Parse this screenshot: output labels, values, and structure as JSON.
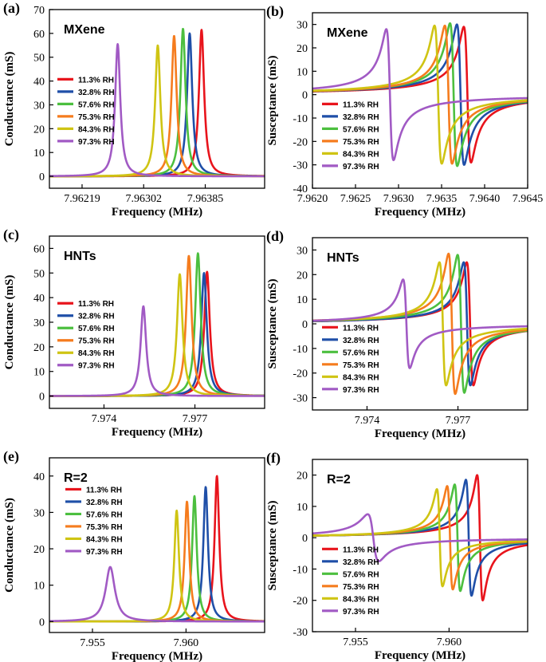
{
  "figure": {
    "legend_entries": [
      "11.3% RH",
      "32.8% RH",
      "57.6% RH",
      "75.3% RH",
      "84.3% RH",
      "97.3% RH"
    ],
    "legend_colors": [
      "#e8141c",
      "#1f4fa8",
      "#4cbf3f",
      "#f57c1e",
      "#cfc413",
      "#a15ac4"
    ]
  },
  "chart_data": [
    {
      "panel": "(a)",
      "label": "MXene",
      "type": "line",
      "kind": "conductance",
      "xlabel": "Frequency (MHz)",
      "ylabel": "Conductance (mS)",
      "xlim": [
        7.96175,
        7.96465
      ],
      "ylim": [
        -5,
        70
      ],
      "xticks": [
        7.96219,
        7.96302,
        7.96385
      ],
      "xtick_labels": [
        "7.96219",
        "7.96302",
        "7.96385"
      ],
      "yticks": [
        0,
        10,
        20,
        30,
        40,
        50,
        60,
        70
      ],
      "legend_pos": "left",
      "series": [
        {
          "name": "11.3% RH",
          "f0": 7.9638,
          "peak": 61.5,
          "width": 4.2e-05
        },
        {
          "name": "32.8% RH",
          "f0": 7.96364,
          "peak": 60.0,
          "width": 4.2e-05
        },
        {
          "name": "57.6% RH",
          "f0": 7.96355,
          "peak": 62.0,
          "width": 4.2e-05
        },
        {
          "name": "75.3% RH",
          "f0": 7.96343,
          "peak": 59.0,
          "width": 4.2e-05
        },
        {
          "name": "84.3% RH",
          "f0": 7.96321,
          "peak": 55.0,
          "width": 4.2e-05
        },
        {
          "name": "97.3% RH",
          "f0": 7.96267,
          "peak": 55.5,
          "width": 4.2e-05
        }
      ]
    },
    {
      "panel": "(b)",
      "label": "MXene",
      "type": "line",
      "kind": "susceptance",
      "xlabel": "Frequency (MHz)",
      "ylabel": "Susceptance (mS)",
      "xlim": [
        7.962,
        7.9645
      ],
      "ylim": [
        -40,
        35
      ],
      "xticks": [
        7.962,
        7.9625,
        7.963,
        7.9635,
        7.964,
        7.9645
      ],
      "xtick_labels": [
        "7.9620",
        "7.9625",
        "7.9630",
        "7.9635",
        "7.9640",
        "7.9645"
      ],
      "yticks": [
        -40,
        -30,
        -20,
        -10,
        0,
        10,
        20,
        30
      ],
      "legend_pos": "lower-left",
      "series": [
        {
          "name": "11.3% RH",
          "f0": 7.9638,
          "amp": 29.0,
          "width": 4.2e-05
        },
        {
          "name": "32.8% RH",
          "f0": 7.96372,
          "amp": 30.0,
          "width": 4.2e-05
        },
        {
          "name": "57.6% RH",
          "f0": 7.96364,
          "amp": 30.5,
          "width": 4.2e-05
        },
        {
          "name": "75.3% RH",
          "f0": 7.96358,
          "amp": 29.5,
          "width": 4.2e-05
        },
        {
          "name": "84.3% RH",
          "f0": 7.96346,
          "amp": 29.5,
          "width": 4.2e-05
        },
        {
          "name": "97.3% RH",
          "f0": 7.9629,
          "amp": 28.0,
          "width": 4.2e-05
        }
      ]
    },
    {
      "panel": "(c)",
      "label": "HNTs",
      "type": "line",
      "kind": "conductance",
      "xlabel": "Frequency (MHz)",
      "ylabel": "Conductance (mS)",
      "xlim": [
        7.9722,
        7.9793
      ],
      "ylim": [
        -5,
        65
      ],
      "xticks": [
        7.974,
        7.977
      ],
      "xtick_labels": [
        "7.974",
        "7.977"
      ],
      "yticks": [
        0,
        10,
        20,
        30,
        40,
        50,
        60
      ],
      "legend_pos": "left",
      "series": [
        {
          "name": "11.3% RH",
          "f0": 7.9774,
          "peak": 50.5,
          "width": 0.00011
        },
        {
          "name": "32.8% RH",
          "f0": 7.9773,
          "peak": 50.0,
          "width": 0.00011
        },
        {
          "name": "57.6% RH",
          "f0": 7.9771,
          "peak": 58.0,
          "width": 0.00011
        },
        {
          "name": "75.3% RH",
          "f0": 7.9768,
          "peak": 57.0,
          "width": 0.00011
        },
        {
          "name": "84.3% RH",
          "f0": 7.9765,
          "peak": 49.5,
          "width": 0.00011
        },
        {
          "name": "97.3% RH",
          "f0": 7.9753,
          "peak": 36.5,
          "width": 0.00011
        }
      ]
    },
    {
      "panel": "(d)",
      "label": "HNTs",
      "type": "line",
      "kind": "susceptance",
      "xlabel": "Frequency (MHz)",
      "ylabel": "Susceptance (mS)",
      "xlim": [
        7.9722,
        7.9793
      ],
      "ylim": [
        -35,
        35
      ],
      "xticks": [
        7.974,
        7.977
      ],
      "xtick_labels": [
        "7.974",
        "7.977"
      ],
      "yticks": [
        -30,
        -20,
        -10,
        0,
        10,
        20,
        30
      ],
      "legend_pos": "lower-left",
      "series": [
        {
          "name": "11.3% RH",
          "f0": 7.9774,
          "amp": 25.0,
          "width": 0.00011
        },
        {
          "name": "32.8% RH",
          "f0": 7.9773,
          "amp": 25.0,
          "width": 0.00011
        },
        {
          "name": "57.6% RH",
          "f0": 7.9771,
          "amp": 28.0,
          "width": 0.00011
        },
        {
          "name": "75.3% RH",
          "f0": 7.9768,
          "amp": 28.5,
          "width": 0.00011
        },
        {
          "name": "84.3% RH",
          "f0": 7.9765,
          "amp": 25.0,
          "width": 0.00011
        },
        {
          "name": "97.3% RH",
          "f0": 7.9753,
          "amp": 18.0,
          "width": 0.00011
        }
      ]
    },
    {
      "panel": "(e)",
      "label": "R=2",
      "type": "line",
      "kind": "conductance",
      "xlabel": "Frequency (MHz)",
      "ylabel": "Conductance (mS)",
      "xlim": [
        7.9527,
        7.9642
      ],
      "ylim": [
        -3,
        45
      ],
      "xticks": [
        7.955,
        7.96
      ],
      "xtick_labels": [
        "7.955",
        "7.960"
      ],
      "yticks": [
        0,
        10,
        20,
        30,
        40
      ],
      "legend_pos": "right",
      "series": [
        {
          "name": "11.3% RH",
          "f0": 7.96165,
          "peak": 40.0,
          "width": 0.00015
        },
        {
          "name": "32.8% RH",
          "f0": 7.96105,
          "peak": 37.0,
          "width": 0.00015
        },
        {
          "name": "57.6% RH",
          "f0": 7.96045,
          "peak": 34.5,
          "width": 0.00015
        },
        {
          "name": "75.3% RH",
          "f0": 7.96005,
          "peak": 33.0,
          "width": 0.00015
        },
        {
          "name": "84.3% RH",
          "f0": 7.9595,
          "peak": 30.5,
          "width": 0.00015
        },
        {
          "name": "97.3% RH",
          "f0": 7.95595,
          "peak": 15.0,
          "width": 0.0003
        }
      ]
    },
    {
      "panel": "(f)",
      "label": "R=2",
      "type": "line",
      "kind": "susceptance",
      "xlabel": "Frequency (MHz)",
      "ylabel": "Susceptance (mS)",
      "xlim": [
        7.9527,
        7.9642
      ],
      "ylim": [
        -30,
        25
      ],
      "xticks": [
        7.955,
        7.96
      ],
      "xtick_labels": [
        "7.955",
        "7.960"
      ],
      "yticks": [
        -30,
        -20,
        -10,
        0,
        10,
        20
      ],
      "legend_pos": "lower-left",
      "series": [
        {
          "name": "11.3% RH",
          "f0": 7.96165,
          "amp": 20.0,
          "width": 0.00015
        },
        {
          "name": "32.8% RH",
          "f0": 7.96105,
          "amp": 18.5,
          "width": 0.00015
        },
        {
          "name": "57.6% RH",
          "f0": 7.96045,
          "amp": 17.0,
          "width": 0.00015
        },
        {
          "name": "75.3% RH",
          "f0": 7.96005,
          "amp": 16.5,
          "width": 0.00015
        },
        {
          "name": "84.3% RH",
          "f0": 7.9595,
          "amp": 15.5,
          "width": 0.00015
        },
        {
          "name": "97.3% RH",
          "f0": 7.95595,
          "amp": 7.5,
          "width": 0.0003
        }
      ]
    }
  ]
}
